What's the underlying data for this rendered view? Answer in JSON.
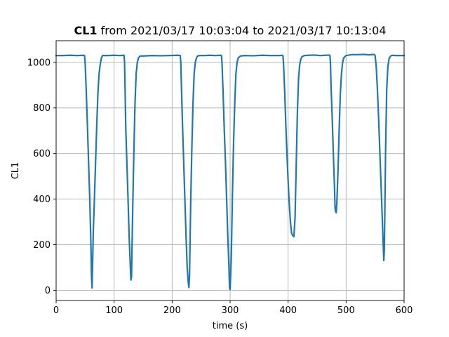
{
  "chart_data": {
    "type": "line",
    "title_bold": "CL1",
    "title_rest": " from 2021/03/17 10:03:04 to 2021/03/17 10:13:04",
    "xlabel": "time (s)",
    "ylabel": "CL1",
    "xlim": [
      0,
      600
    ],
    "ylim": [
      -45,
      1095
    ],
    "xticks": [
      0,
      100,
      200,
      300,
      400,
      500,
      600
    ],
    "yticks": [
      0,
      200,
      400,
      600,
      800,
      1000
    ],
    "grid": true,
    "line_color": "#1f77b4",
    "series": [
      {
        "x": [
          0,
          12,
          24,
          36,
          48,
          49,
          50,
          52,
          54,
          56,
          58,
          60,
          61,
          62,
          64,
          66,
          68,
          70,
          72,
          74,
          76,
          78,
          80,
          90,
          100,
          110,
          117,
          118,
          119,
          120,
          122,
          124,
          126,
          128,
          129,
          130,
          132,
          134,
          136,
          138,
          140,
          142,
          145,
          150,
          165,
          180,
          195,
          210,
          214,
          215,
          216,
          218,
          220,
          222,
          224,
          226,
          228,
          229,
          230,
          232,
          234,
          236,
          238,
          240,
          242,
          244,
          248,
          255,
          265,
          275,
          284,
          285,
          286,
          288,
          290,
          292,
          294,
          296,
          298,
          299,
          300,
          302,
          304,
          306,
          308,
          310,
          312,
          314,
          318,
          325,
          340,
          355,
          370,
          385,
          390,
          391,
          392,
          394,
          396,
          398,
          400,
          402,
          404,
          406,
          408,
          409,
          410,
          412,
          414,
          416,
          418,
          420,
          422,
          424,
          428,
          435,
          445,
          455,
          465,
          471,
          472,
          473,
          474,
          476,
          478,
          480,
          481,
          482,
          483,
          484,
          486,
          488,
          490,
          492,
          494,
          496,
          500,
          510,
          520,
          530,
          540,
          548,
          549,
          550,
          552,
          554,
          556,
          558,
          560,
          562,
          564,
          565,
          566,
          568,
          570,
          572,
          574,
          576,
          578,
          580,
          585,
          592,
          600
        ],
        "values": [
          1030,
          1030,
          1031,
          1030,
          1031,
          1030,
          1000,
          870,
          720,
          560,
          400,
          200,
          60,
          10,
          250,
          400,
          560,
          720,
          860,
          950,
          990,
          1018,
          1030,
          1030,
          1031,
          1030,
          1031,
          1000,
          870,
          720,
          560,
          400,
          230,
          100,
          45,
          60,
          350,
          600,
          820,
          950,
          1000,
          1020,
          1028,
          1028,
          1030,
          1029,
          1030,
          1031,
          1030,
          1000,
          900,
          720,
          560,
          400,
          240,
          100,
          30,
          12,
          60,
          380,
          620,
          820,
          950,
          1000,
          1020,
          1028,
          1030,
          1030,
          1031,
          1030,
          1031,
          1030,
          1000,
          860,
          700,
          560,
          400,
          240,
          100,
          10,
          3,
          140,
          420,
          650,
          820,
          950,
          1000,
          1020,
          1028,
          1030,
          1029,
          1031,
          1030,
          1030,
          1031,
          1030,
          1000,
          880,
          730,
          600,
          480,
          380,
          300,
          250,
          240,
          237,
          235,
          320,
          550,
          780,
          930,
          990,
          1015,
          1025,
          1030,
          1031,
          1032,
          1030,
          1031,
          1032,
          1031,
          1000,
          900,
          760,
          600,
          450,
          360,
          345,
          340,
          380,
          520,
          700,
          860,
          950,
          1000,
          1020,
          1030,
          1034,
          1034,
          1035,
          1033,
          1035,
          1034,
          1030,
          980,
          880,
          760,
          620,
          480,
          340,
          200,
          130,
          180,
          600,
          880,
          980,
          1015,
          1025,
          1030,
          1031,
          1030,
          1030,
          1030
        ]
      }
    ]
  }
}
